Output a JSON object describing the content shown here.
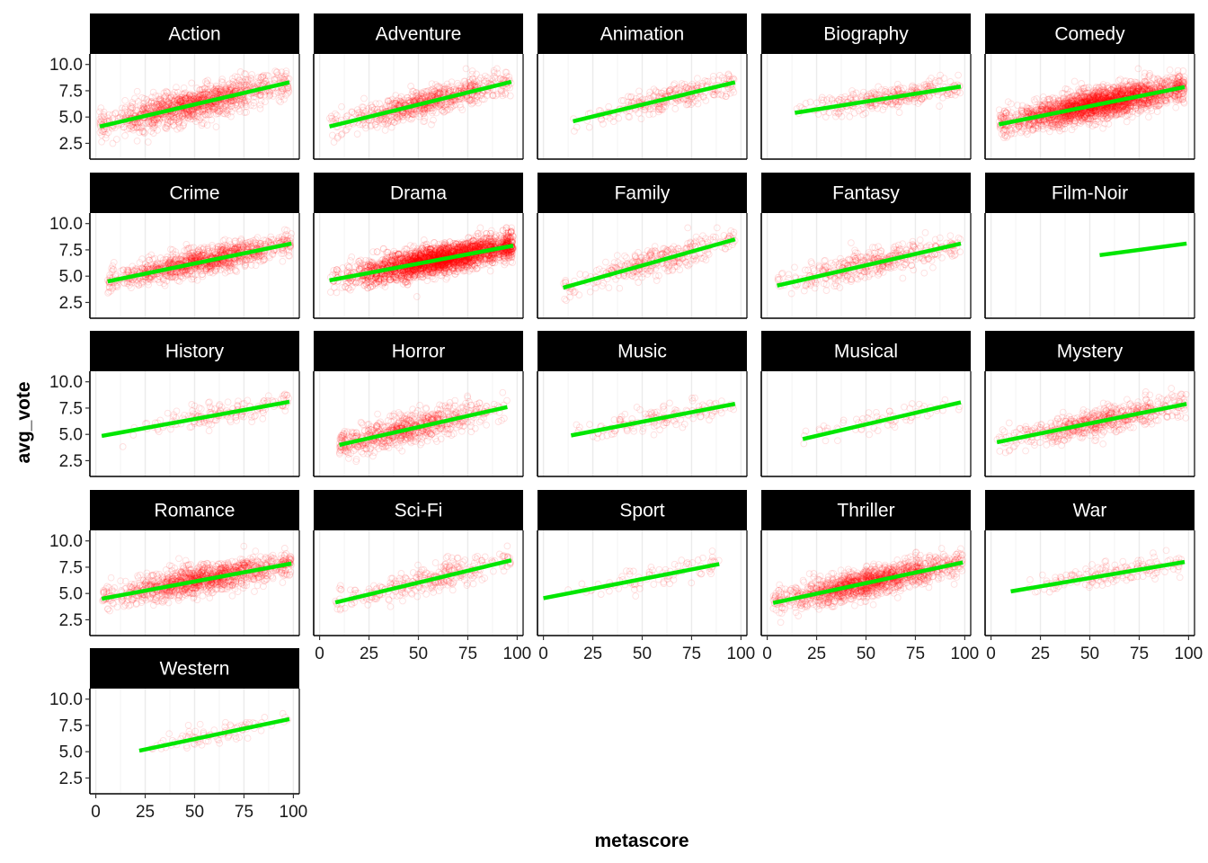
{
  "chart_data": {
    "type": "scatter",
    "layout": "facet_wrap",
    "ncol": 5,
    "xlabel": "metascore",
    "ylabel": "avg_vote",
    "xlim": [
      -3,
      103
    ],
    "ylim": [
      1.0,
      11.0
    ],
    "x_ticks": [
      0,
      25,
      50,
      75,
      100
    ],
    "x_tick_labels": [
      "0",
      "25",
      "50",
      "75",
      "100"
    ],
    "y_ticks": [
      2.5,
      5.0,
      7.5,
      10.0
    ],
    "y_tick_labels": [
      "2.5",
      "5.0",
      "7.5",
      "10.0"
    ],
    "grid": "vertical major + minor only",
    "point_color": "#ff0000",
    "point_style": "hollow circle, high transparency",
    "line_color": "#00e600",
    "facets": [
      {
        "name": "Action",
        "x_range": [
          2,
          98
        ],
        "fit": [
          [
            2,
            4.1
          ],
          [
            98,
            8.3
          ]
        ],
        "density": 1300,
        "spread": 0.75,
        "center": 50
      },
      {
        "name": "Adventure",
        "x_range": [
          5,
          97
        ],
        "fit": [
          [
            5,
            4.1
          ],
          [
            97,
            8.35
          ]
        ],
        "density": 800,
        "spread": 0.65,
        "center": 55
      },
      {
        "name": "Animation",
        "x_range": [
          15,
          97
        ],
        "fit": [
          [
            15,
            4.6
          ],
          [
            97,
            8.3
          ]
        ],
        "density": 300,
        "spread": 0.55,
        "center": 65
      },
      {
        "name": "Biography",
        "x_range": [
          14,
          98
        ],
        "fit": [
          [
            14,
            5.4
          ],
          [
            98,
            7.9
          ]
        ],
        "density": 350,
        "spread": 0.5,
        "center": 65
      },
      {
        "name": "Comedy",
        "x_range": [
          4,
          98
        ],
        "fit": [
          [
            4,
            4.3
          ],
          [
            98,
            7.85
          ]
        ],
        "density": 2600,
        "spread": 0.7,
        "center": 55
      },
      {
        "name": "Crime",
        "x_range": [
          6,
          99
        ],
        "fit": [
          [
            6,
            4.5
          ],
          [
            99,
            8.1
          ]
        ],
        "density": 1200,
        "spread": 0.6,
        "center": 55
      },
      {
        "name": "Drama",
        "x_range": [
          5,
          98
        ],
        "fit": [
          [
            5,
            4.6
          ],
          [
            98,
            7.9
          ]
        ],
        "density": 3200,
        "spread": 0.65,
        "center": 62
      },
      {
        "name": "Family",
        "x_range": [
          10,
          97
        ],
        "fit": [
          [
            10,
            3.9
          ],
          [
            97,
            8.5
          ]
        ],
        "density": 350,
        "spread": 0.65,
        "center": 55
      },
      {
        "name": "Fantasy",
        "x_range": [
          5,
          98
        ],
        "fit": [
          [
            5,
            4.1
          ],
          [
            98,
            8.1
          ]
        ],
        "density": 450,
        "spread": 0.65,
        "center": 55
      },
      {
        "name": "Film-Noir",
        "x_range": [
          55,
          99
        ],
        "fit": [
          [
            55,
            7.0
          ],
          [
            99,
            8.1
          ]
        ],
        "density": 0,
        "spread": 0.3,
        "center": 80
      },
      {
        "name": "History",
        "x_range": [
          3,
          98
        ],
        "fit": [
          [
            3,
            4.85
          ],
          [
            98,
            8.1
          ]
        ],
        "density": 180,
        "spread": 0.5,
        "center": 65
      },
      {
        "name": "Horror",
        "x_range": [
          10,
          95
        ],
        "fit": [
          [
            10,
            4.0
          ],
          [
            95,
            7.6
          ]
        ],
        "density": 800,
        "spread": 0.7,
        "center": 45
      },
      {
        "name": "Music",
        "x_range": [
          14,
          97
        ],
        "fit": [
          [
            14,
            4.9
          ],
          [
            97,
            7.9
          ]
        ],
        "density": 150,
        "spread": 0.55,
        "center": 60
      },
      {
        "name": "Musical",
        "x_range": [
          18,
          98
        ],
        "fit": [
          [
            18,
            4.55
          ],
          [
            98,
            8.05
          ]
        ],
        "density": 70,
        "spread": 0.5,
        "center": 60
      },
      {
        "name": "Mystery",
        "x_range": [
          3,
          99
        ],
        "fit": [
          [
            3,
            4.25
          ],
          [
            99,
            7.9
          ]
        ],
        "density": 650,
        "spread": 0.65,
        "center": 55
      },
      {
        "name": "Romance",
        "x_range": [
          3,
          99
        ],
        "fit": [
          [
            3,
            4.5
          ],
          [
            99,
            7.85
          ]
        ],
        "density": 1300,
        "spread": 0.65,
        "center": 55
      },
      {
        "name": "Sci-Fi",
        "x_range": [
          8,
          97
        ],
        "fit": [
          [
            8,
            4.15
          ],
          [
            97,
            8.15
          ]
        ],
        "density": 320,
        "spread": 0.65,
        "center": 55
      },
      {
        "name": "Sport",
        "x_range": [
          0,
          89
        ],
        "fit": [
          [
            0,
            4.55
          ],
          [
            89,
            7.8
          ]
        ],
        "density": 90,
        "spread": 0.55,
        "center": 60
      },
      {
        "name": "Thriller",
        "x_range": [
          3,
          99
        ],
        "fit": [
          [
            3,
            4.1
          ],
          [
            99,
            7.95
          ]
        ],
        "density": 1500,
        "spread": 0.65,
        "center": 52
      },
      {
        "name": "War",
        "x_range": [
          10,
          98
        ],
        "fit": [
          [
            10,
            5.2
          ],
          [
            98,
            8.0
          ]
        ],
        "density": 180,
        "spread": 0.5,
        "center": 65
      },
      {
        "name": "Western",
        "x_range": [
          22,
          98
        ],
        "fit": [
          [
            22,
            5.1
          ],
          [
            98,
            8.1
          ]
        ],
        "density": 90,
        "spread": 0.5,
        "center": 60
      }
    ]
  }
}
